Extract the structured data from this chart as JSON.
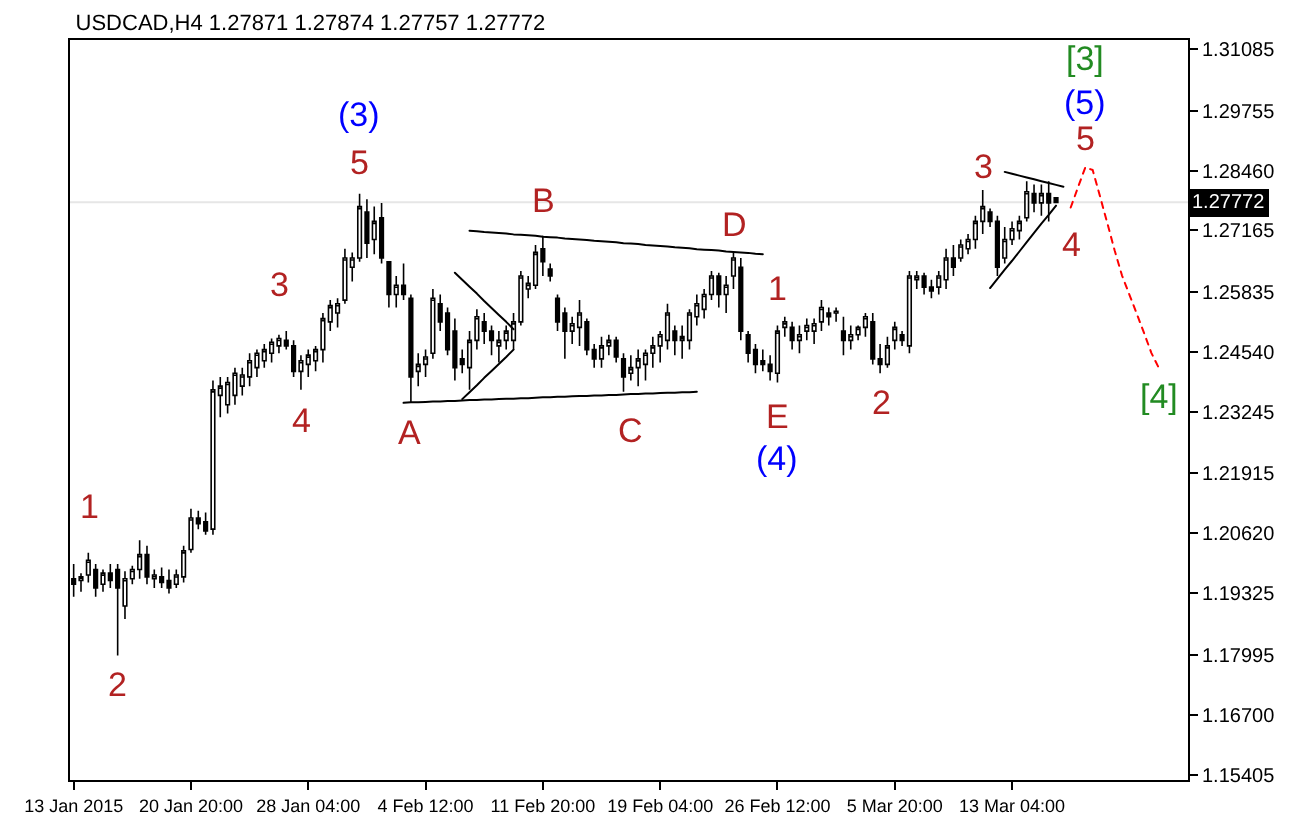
{
  "chart_data": {
    "type": "candlestick",
    "title": "USDCAD,H4 1.27871 1.27874 1.27757 1.27772",
    "color": "#000000",
    "categories": [
      "13 Jan 2015",
      null,
      null,
      null,
      null,
      null,
      null,
      null,
      null,
      null,
      null,
      null,
      null,
      null,
      null,
      null,
      "20 Jan 20:00",
      null,
      null,
      null,
      null,
      null,
      null,
      null,
      null,
      null,
      null,
      null,
      null,
      null,
      null,
      null,
      "28 Jan 04:00",
      null,
      null,
      null,
      null,
      null,
      null,
      null,
      null,
      null,
      null,
      null,
      null,
      null,
      null,
      null,
      "4 Feb 12:00",
      null,
      null,
      null,
      null,
      null,
      null,
      null,
      null,
      null,
      null,
      null,
      null,
      null,
      null,
      null,
      "11 Feb 20:00",
      null,
      null,
      null,
      null,
      null,
      null,
      null,
      null,
      null,
      null,
      null,
      null,
      null,
      null,
      null,
      "19 Feb 04:00",
      null,
      null,
      null,
      null,
      null,
      null,
      null,
      null,
      null,
      null,
      null,
      null,
      null,
      null,
      null,
      "26 Feb 12:00",
      null,
      null,
      null,
      null,
      null,
      null,
      null,
      null,
      null,
      null,
      null,
      null,
      null,
      null,
      null,
      "5 Mar 20:00",
      null,
      null,
      null,
      null,
      null,
      null,
      null,
      null,
      null,
      null,
      null,
      null,
      null,
      null,
      null,
      "13 Mar 04:00",
      null,
      null,
      null,
      null,
      null,
      null,
      null,
      null,
      null,
      null,
      null,
      null,
      null,
      null,
      null,
      null,
      null,
      null,
      null,
      null,
      null,
      null,
      null,
      null
    ],
    "ohlc": [
      [
        1.1964,
        1.1996,
        1.1925,
        1.1952
      ],
      [
        1.196,
        1.1976,
        1.1936,
        1.1968
      ],
      [
        1.1972,
        1.202,
        1.1956,
        1.2004
      ],
      [
        1.1984,
        1.1996,
        1.1925,
        1.1944
      ],
      [
        1.1952,
        1.1984,
        1.1936,
        1.1976
      ],
      [
        1.1976,
        1.1996,
        1.1944,
        1.196
      ],
      [
        1.1984,
        1.1996,
        1.1798,
        1.1944
      ],
      [
        1.1905,
        1.198,
        1.1877,
        1.1964
      ],
      [
        1.1964,
        1.1992,
        1.1952,
        1.1984
      ],
      [
        1.1984,
        1.2047,
        1.1964,
        1.2016
      ],
      [
        1.2016,
        1.2035,
        1.1952,
        1.1968
      ],
      [
        1.1964,
        1.1984,
        1.1944,
        1.1972
      ],
      [
        1.1968,
        1.1988,
        1.1944,
        1.1956
      ],
      [
        1.196,
        1.1984,
        1.1932,
        1.1944
      ],
      [
        1.1952,
        1.1984,
        1.1944,
        1.1972
      ],
      [
        1.1968,
        1.2035,
        1.1956,
        1.2024
      ],
      [
        1.2027,
        1.2115,
        1.202,
        1.2095
      ],
      [
        1.2095,
        1.2111,
        1.2071,
        1.2083
      ],
      [
        1.2087,
        1.2107,
        1.2059,
        1.2067
      ],
      [
        1.2071,
        1.2392,
        1.2059,
        1.2372
      ],
      [
        1.236,
        1.24,
        1.2313,
        1.238
      ],
      [
        1.234,
        1.24,
        1.2321,
        1.2388
      ],
      [
        1.236,
        1.242,
        1.234,
        1.2408
      ],
      [
        1.238,
        1.242,
        1.236,
        1.2404
      ],
      [
        1.24,
        1.2451,
        1.238,
        1.2435
      ],
      [
        1.242,
        1.2459,
        1.24,
        1.2451
      ],
      [
        1.2435,
        1.2471,
        1.242,
        1.2459
      ],
      [
        1.2451,
        1.2483,
        1.2431,
        1.2475
      ],
      [
        1.2467,
        1.2491,
        1.2451,
        1.2483
      ],
      [
        1.2479,
        1.2499,
        1.2459,
        1.2467
      ],
      [
        1.2467,
        1.2479,
        1.24,
        1.2412
      ],
      [
        1.2412,
        1.2447,
        1.2372,
        1.2435
      ],
      [
        1.2427,
        1.2459,
        1.24,
        1.2447
      ],
      [
        1.2435,
        1.2467,
        1.2412,
        1.2459
      ],
      [
        1.2459,
        1.2538,
        1.2431,
        1.2526
      ],
      [
        1.2519,
        1.2566,
        1.2499,
        1.2554
      ],
      [
        1.2538,
        1.257,
        1.2507,
        1.2558
      ],
      [
        1.2566,
        1.2677,
        1.2558,
        1.2657
      ],
      [
        1.2637,
        1.2669,
        1.2606,
        1.2657
      ],
      [
        1.2657,
        1.2796,
        1.2649,
        1.2768
      ],
      [
        1.2756,
        1.2784,
        1.2657,
        1.2689
      ],
      [
        1.2697,
        1.2768,
        1.2665,
        1.2736
      ],
      [
        1.2744,
        1.2776,
        1.2645,
        1.2657
      ],
      [
        1.2649,
        1.2649,
        1.255,
        1.2578
      ],
      [
        1.2578,
        1.2618,
        1.255,
        1.2598
      ],
      [
        1.2598,
        1.2645,
        1.2566,
        1.2578
      ],
      [
        1.257,
        1.2578,
        1.2344,
        1.24
      ],
      [
        1.2412,
        1.2451,
        1.238,
        1.2427
      ],
      [
        1.2427,
        1.2459,
        1.24,
        1.2443
      ],
      [
        1.2451,
        1.259,
        1.2439,
        1.257
      ],
      [
        1.2558,
        1.2578,
        1.2499,
        1.2519
      ],
      [
        1.2538,
        1.255,
        1.2447,
        1.2459
      ],
      [
        1.2499,
        1.2526,
        1.2392,
        1.242
      ],
      [
        1.2439,
        1.2459,
        1.2408,
        1.2427
      ],
      [
        1.242,
        1.2499,
        1.2372,
        1.2479
      ],
      [
        1.2479,
        1.2546,
        1.2459,
        1.253
      ],
      [
        1.2519,
        1.2538,
        1.2471,
        1.2499
      ],
      [
        1.2499,
        1.2511,
        1.2447,
        1.2479
      ],
      [
        1.2467,
        1.2499,
        1.2431,
        1.2479
      ],
      [
        1.2479,
        1.2511,
        1.2459,
        1.2499
      ],
      [
        1.2479,
        1.2538,
        1.2459,
        1.2519
      ],
      [
        1.2519,
        1.2629,
        1.2511,
        1.2618
      ],
      [
        1.259,
        1.2618,
        1.257,
        1.2602
      ],
      [
        1.2598,
        1.2685,
        1.259,
        1.2669
      ],
      [
        1.2677,
        1.2705,
        1.2618,
        1.2649
      ],
      [
        1.2633,
        1.2645,
        1.2606,
        1.2618
      ],
      [
        1.257,
        1.2578,
        1.2499,
        1.2519
      ],
      [
        1.2538,
        1.255,
        1.2439,
        1.2499
      ],
      [
        1.2499,
        1.253,
        1.2471,
        1.2515
      ],
      [
        1.2507,
        1.2566,
        1.2467,
        1.2538
      ],
      [
        1.2519,
        1.2526,
        1.2447,
        1.2459
      ],
      [
        1.2459,
        1.2471,
        1.242,
        1.2439
      ],
      [
        1.2439,
        1.2487,
        1.242,
        1.2467
      ],
      [
        1.2467,
        1.2491,
        1.2447,
        1.2479
      ],
      [
        1.2479,
        1.2487,
        1.2431,
        1.2443
      ],
      [
        1.2439,
        1.2451,
        1.2368,
        1.24
      ],
      [
        1.2408,
        1.2447,
        1.2392,
        1.242
      ],
      [
        1.242,
        1.2459,
        1.238,
        1.2439
      ],
      [
        1.2427,
        1.2459,
        1.2392,
        1.2451
      ],
      [
        1.2451,
        1.2487,
        1.242,
        1.2467
      ],
      [
        1.2467,
        1.2499,
        1.2431,
        1.2491
      ],
      [
        1.2479,
        1.2558,
        1.2459,
        1.2538
      ],
      [
        1.2499,
        1.2511,
        1.2447,
        1.2479
      ],
      [
        1.2479,
        1.2511,
        1.2439,
        1.2487
      ],
      [
        1.2479,
        1.2546,
        1.2459,
        1.2538
      ],
      [
        1.253,
        1.2578,
        1.2511,
        1.2558
      ],
      [
        1.2546,
        1.259,
        1.2526,
        1.2578
      ],
      [
        1.2578,
        1.2629,
        1.2566,
        1.2618
      ],
      [
        1.2618,
        1.2625,
        1.255,
        1.2578
      ],
      [
        1.2578,
        1.2618,
        1.2538,
        1.2598
      ],
      [
        1.2618,
        1.2669,
        1.259,
        1.2657
      ],
      [
        1.2637,
        1.2657,
        1.2479,
        1.2499
      ],
      [
        1.2491,
        1.2499,
        1.2431,
        1.2451
      ],
      [
        1.2459,
        1.2471,
        1.2408,
        1.2427
      ],
      [
        1.2435,
        1.2459,
        1.2412,
        1.2427
      ],
      [
        1.2427,
        1.2447,
        1.2392,
        1.2412
      ],
      [
        1.2408,
        1.2511,
        1.2388,
        1.2499
      ],
      [
        1.2507,
        1.253,
        1.2487,
        1.2519
      ],
      [
        1.2507,
        1.2519,
        1.2459,
        1.2479
      ],
      [
        1.2479,
        1.2511,
        1.2451,
        1.2491
      ],
      [
        1.2499,
        1.2526,
        1.2479,
        1.2511
      ],
      [
        1.2499,
        1.2526,
        1.2471,
        1.2515
      ],
      [
        1.2519,
        1.2566,
        1.2499,
        1.255
      ],
      [
        1.2538,
        1.255,
        1.2511,
        1.253
      ],
      [
        1.2538,
        1.255,
        1.2519,
        1.2542
      ],
      [
        1.2499,
        1.253,
        1.2447,
        1.2479
      ],
      [
        1.2479,
        1.2511,
        1.2459,
        1.2491
      ],
      [
        1.2491,
        1.2511,
        1.2479,
        1.2507
      ],
      [
        1.2507,
        1.2538,
        1.2487,
        1.253
      ],
      [
        1.2519,
        1.2538,
        1.2427,
        1.2439
      ],
      [
        1.2439,
        1.2471,
        1.2408,
        1.2427
      ],
      [
        1.2427,
        1.2487,
        1.242,
        1.2467
      ],
      [
        1.2479,
        1.2519,
        1.2459,
        1.2507
      ],
      [
        1.2491,
        1.2499,
        1.2467,
        1.2479
      ],
      [
        1.2467,
        1.2629,
        1.2451,
        1.2618
      ],
      [
        1.261,
        1.2629,
        1.259,
        1.2618
      ],
      [
        1.2618,
        1.2625,
        1.2578,
        1.2594
      ],
      [
        1.2594,
        1.261,
        1.257,
        1.2586
      ],
      [
        1.2594,
        1.2629,
        1.2578,
        1.2618
      ],
      [
        1.261,
        1.2677,
        1.259,
        1.2657
      ],
      [
        1.2657,
        1.2685,
        1.2618,
        1.2637
      ],
      [
        1.2657,
        1.2697,
        1.2649,
        1.2685
      ],
      [
        1.2677,
        1.2709,
        1.2665,
        1.2697
      ],
      [
        1.2697,
        1.2748,
        1.2677,
        1.2736
      ],
      [
        1.2736,
        1.2804,
        1.2709,
        1.2768
      ],
      [
        1.2756,
        1.2764,
        1.2724,
        1.2736
      ],
      [
        1.2736,
        1.2748,
        1.2618,
        1.2637
      ],
      [
        1.2657,
        1.2724,
        1.2645,
        1.2697
      ],
      [
        1.2697,
        1.2736,
        1.2685,
        1.272
      ],
      [
        1.2716,
        1.2748,
        1.2697,
        1.2736
      ],
      [
        1.2744,
        1.2823,
        1.2736,
        1.28
      ],
      [
        1.2796,
        1.2816,
        1.2756,
        1.2776
      ],
      [
        1.2776,
        1.2816,
        1.2748,
        1.2796
      ],
      [
        1.2796,
        1.2823,
        1.2736,
        1.2776
      ],
      [
        1.27871,
        1.27874,
        1.27757,
        1.27772
      ],
      null,
      null,
      null,
      null,
      null,
      null,
      null,
      null,
      null,
      null,
      null,
      null,
      null,
      null,
      null,
      null,
      null,
      null
    ],
    "series": [
      {
        "type": "line",
        "color": "#000000",
        "values": [
          null,
          null,
          null,
          null,
          null,
          null,
          null,
          null,
          null,
          null,
          null,
          null,
          null,
          null,
          null,
          null,
          null,
          null,
          null,
          null,
          null,
          null,
          null,
          null,
          null,
          null,
          null,
          null,
          null,
          null,
          null,
          null,
          null,
          null,
          null,
          null,
          null,
          null,
          null,
          null,
          null,
          null,
          null,
          null,
          null,
          1.2344,
          1.2345,
          1.2345,
          1.2346,
          1.2347,
          1.2347,
          1.2348,
          1.2348,
          1.2349,
          1.235,
          1.235,
          1.2351,
          1.2351,
          1.2352,
          1.2353,
          1.2353,
          1.2354,
          1.2354,
          1.2355,
          1.2356,
          1.2356,
          1.2357,
          1.2357,
          1.2358,
          1.2359,
          1.2359,
          1.236,
          1.236,
          1.2361,
          1.2361,
          1.2362,
          1.2363,
          1.2363,
          1.2364,
          1.2364,
          1.2365,
          1.2366,
          1.2366,
          1.2367,
          1.2367,
          1.2368,
          null,
          null,
          null,
          null,
          null,
          null,
          null,
          null,
          null,
          null,
          null,
          null,
          null,
          null,
          null,
          null,
          null,
          null,
          null,
          null,
          null,
          null,
          null,
          null,
          null,
          null,
          null,
          null,
          null,
          null,
          null,
          null,
          null,
          null,
          null,
          null,
          null,
          null,
          null,
          null,
          null,
          null,
          null,
          null,
          null,
          null,
          null,
          null,
          null,
          null,
          null,
          null,
          null,
          null,
          null,
          null,
          null,
          null,
          null,
          null,
          null,
          null,
          null,
          null,
          null,
          null,
          null
        ]
      },
      {
        "type": "line",
        "color": "#000000",
        "values": [
          null,
          null,
          null,
          null,
          null,
          null,
          null,
          null,
          null,
          null,
          null,
          null,
          null,
          null,
          null,
          null,
          null,
          null,
          null,
          null,
          null,
          null,
          null,
          null,
          null,
          null,
          null,
          null,
          null,
          null,
          null,
          null,
          null,
          null,
          null,
          null,
          null,
          null,
          null,
          null,
          null,
          null,
          null,
          null,
          null,
          null,
          null,
          null,
          null,
          null,
          null,
          null,
          null,
          null,
          1.2716,
          1.2715,
          1.2713,
          1.2712,
          1.2711,
          1.271,
          1.2708,
          1.2707,
          1.2706,
          1.2705,
          1.2703,
          1.2702,
          1.2701,
          1.2699,
          1.2698,
          1.2697,
          1.2696,
          1.2694,
          1.2693,
          1.2692,
          1.2691,
          1.2689,
          1.2688,
          1.2687,
          1.2685,
          1.2684,
          1.2683,
          1.2682,
          1.268,
          1.2679,
          1.2678,
          1.2676,
          1.2675,
          1.2674,
          1.2673,
          1.2671,
          1.267,
          1.2669,
          1.2668,
          1.2666,
          1.2665,
          null,
          null,
          null,
          null,
          null,
          null,
          null,
          null,
          null,
          null,
          null,
          null,
          null,
          null,
          null,
          null,
          null,
          null,
          null,
          null,
          null,
          null,
          null,
          null,
          null,
          null,
          null,
          null,
          null,
          null,
          null,
          null,
          null,
          null,
          null,
          null,
          null,
          null,
          null,
          null,
          null,
          null,
          null,
          null,
          null,
          null,
          null,
          null,
          null,
          null,
          null,
          null,
          null,
          null,
          null,
          null,
          null,
          null
        ]
      },
      {
        "type": "line",
        "color": "#000000",
        "values": [
          null,
          null,
          null,
          null,
          null,
          null,
          null,
          null,
          null,
          null,
          null,
          null,
          null,
          null,
          null,
          null,
          null,
          null,
          null,
          null,
          null,
          null,
          null,
          null,
          null,
          null,
          null,
          null,
          null,
          null,
          null,
          null,
          null,
          null,
          null,
          null,
          null,
          null,
          null,
          null,
          null,
          null,
          null,
          null,
          null,
          null,
          null,
          null,
          null,
          null,
          null,
          null,
          1.2625,
          1.261,
          1.2595,
          1.258,
          1.2564,
          1.2549,
          1.2534,
          1.2519,
          1.2503,
          null,
          null,
          null,
          null,
          null,
          null,
          null,
          null,
          null,
          null,
          null,
          null,
          null,
          null,
          null,
          null,
          null,
          null,
          null,
          null,
          null,
          null,
          null,
          null,
          null,
          null,
          null,
          null,
          null,
          null,
          null,
          null,
          null,
          null,
          null,
          null,
          null,
          null,
          null,
          null,
          null,
          null,
          null,
          null,
          null,
          null,
          null,
          null,
          null,
          null,
          null,
          null,
          null,
          null,
          null,
          null,
          null,
          null,
          null,
          null,
          null,
          null,
          null,
          null,
          null,
          null,
          null,
          null,
          null,
          null,
          null,
          null,
          null,
          null,
          null,
          null,
          null,
          null,
          null,
          null,
          null,
          null,
          null,
          null,
          null,
          null,
          null,
          null,
          null,
          null,
          null,
          null
        ]
      },
      {
        "type": "line",
        "color": "#000000",
        "values": [
          null,
          null,
          null,
          null,
          null,
          null,
          null,
          null,
          null,
          null,
          null,
          null,
          null,
          null,
          null,
          null,
          null,
          null,
          null,
          null,
          null,
          null,
          null,
          null,
          null,
          null,
          null,
          null,
          null,
          null,
          null,
          null,
          null,
          null,
          null,
          null,
          null,
          null,
          null,
          null,
          null,
          null,
          null,
          null,
          null,
          null,
          null,
          null,
          null,
          null,
          null,
          null,
          null,
          1.2352,
          1.2367,
          1.2382,
          1.2398,
          1.2413,
          1.2428,
          1.2443,
          1.2459,
          null,
          null,
          null,
          null,
          null,
          null,
          null,
          null,
          null,
          null,
          null,
          null,
          null,
          null,
          null,
          null,
          null,
          null,
          null,
          null,
          null,
          null,
          null,
          null,
          null,
          null,
          null,
          null,
          null,
          null,
          null,
          null,
          null,
          null,
          null,
          null,
          null,
          null,
          null,
          null,
          null,
          null,
          null,
          null,
          null,
          null,
          null,
          null,
          null,
          null,
          null,
          null,
          null,
          null,
          null,
          null,
          null,
          null,
          null,
          null,
          null,
          null,
          null,
          null,
          null,
          null,
          null,
          null,
          null,
          null,
          null,
          null,
          null,
          null,
          null,
          null,
          null,
          null,
          null,
          null,
          null,
          null,
          null,
          null,
          null,
          null,
          null,
          null,
          null,
          null,
          null,
          null
        ]
      },
      {
        "type": "line",
        "color": "#000000",
        "values": [
          null,
          null,
          null,
          null,
          null,
          null,
          null,
          null,
          null,
          null,
          null,
          null,
          null,
          null,
          null,
          null,
          null,
          null,
          null,
          null,
          null,
          null,
          null,
          null,
          null,
          null,
          null,
          null,
          null,
          null,
          null,
          null,
          null,
          null,
          null,
          null,
          null,
          null,
          null,
          null,
          null,
          null,
          null,
          null,
          null,
          null,
          null,
          null,
          null,
          null,
          null,
          null,
          null,
          null,
          null,
          null,
          null,
          null,
          null,
          null,
          null,
          null,
          null,
          null,
          null,
          null,
          null,
          null,
          null,
          null,
          null,
          null,
          null,
          null,
          null,
          null,
          null,
          null,
          null,
          null,
          null,
          null,
          null,
          null,
          null,
          null,
          null,
          null,
          null,
          null,
          null,
          null,
          null,
          null,
          null,
          null,
          null,
          null,
          null,
          null,
          null,
          null,
          null,
          null,
          null,
          null,
          null,
          null,
          null,
          null,
          null,
          null,
          null,
          null,
          null,
          null,
          null,
          null,
          null,
          null,
          null,
          null,
          null,
          null,
          null,
          null,
          null,
          1.2843,
          1.2839,
          1.2835,
          1.2831,
          1.2827,
          1.2823,
          1.2819,
          1.2815,
          1.2811,
          null,
          null,
          null,
          null,
          null,
          null,
          null,
          null,
          null,
          null,
          null,
          null,
          null,
          null,
          null,
          null,
          null
        ]
      },
      {
        "type": "line",
        "color": "#000000",
        "values": [
          null,
          null,
          null,
          null,
          null,
          null,
          null,
          null,
          null,
          null,
          null,
          null,
          null,
          null,
          null,
          null,
          null,
          null,
          null,
          null,
          null,
          null,
          null,
          null,
          null,
          null,
          null,
          null,
          null,
          null,
          null,
          null,
          null,
          null,
          null,
          null,
          null,
          null,
          null,
          null,
          null,
          null,
          null,
          null,
          null,
          null,
          null,
          null,
          null,
          null,
          null,
          null,
          null,
          null,
          null,
          null,
          null,
          null,
          null,
          null,
          null,
          null,
          null,
          null,
          null,
          null,
          null,
          null,
          null,
          null,
          null,
          null,
          null,
          null,
          null,
          null,
          null,
          null,
          null,
          null,
          null,
          null,
          null,
          null,
          null,
          null,
          null,
          null,
          null,
          null,
          null,
          null,
          null,
          null,
          null,
          null,
          null,
          null,
          null,
          null,
          null,
          null,
          null,
          null,
          null,
          null,
          null,
          null,
          null,
          null,
          null,
          null,
          null,
          null,
          null,
          null,
          null,
          null,
          null,
          null,
          null,
          null,
          null,
          null,
          null,
          1.2592,
          1.2612,
          1.2632,
          1.2651,
          1.2671,
          1.2691,
          1.2711,
          1.2731,
          1.275,
          1.277,
          null,
          null,
          null,
          null,
          null,
          null,
          null,
          null,
          null,
          null,
          null,
          null,
          null,
          null,
          null,
          null,
          null,
          null
        ]
      },
      {
        "type": "line",
        "color": "#ff0000",
        "line_style": "dashed",
        "values": [
          null,
          null,
          null,
          null,
          null,
          null,
          null,
          null,
          null,
          null,
          null,
          null,
          null,
          null,
          null,
          null,
          null,
          null,
          null,
          null,
          null,
          null,
          null,
          null,
          null,
          null,
          null,
          null,
          null,
          null,
          null,
          null,
          null,
          null,
          null,
          null,
          null,
          null,
          null,
          null,
          null,
          null,
          null,
          null,
          null,
          null,
          null,
          null,
          null,
          null,
          null,
          null,
          null,
          null,
          null,
          null,
          null,
          null,
          null,
          null,
          null,
          null,
          null,
          null,
          null,
          null,
          null,
          null,
          null,
          null,
          null,
          null,
          null,
          null,
          null,
          null,
          null,
          null,
          null,
          null,
          null,
          null,
          null,
          null,
          null,
          null,
          null,
          null,
          null,
          null,
          null,
          null,
          null,
          null,
          null,
          null,
          null,
          null,
          null,
          null,
          null,
          null,
          null,
          null,
          null,
          null,
          null,
          null,
          null,
          null,
          null,
          null,
          null,
          null,
          null,
          null,
          null,
          null,
          null,
          null,
          null,
          null,
          null,
          null,
          null,
          null,
          null,
          null,
          null,
          null,
          null,
          null,
          null,
          null,
          null,
          null,
          1.2766,
          1.281,
          1.2853,
          1.2847,
          1.279,
          1.2732,
          1.2673,
          1.2619,
          1.2578,
          1.2537,
          1.2495,
          1.2452,
          1.242,
          null,
          null,
          null,
          null
        ]
      }
    ],
    "ylim": [
      1.1529,
      1.3128
    ],
    "yticks": [
      1.31085,
      1.29755,
      {
        "value": 1.2846,
        "label": "1.28460"
      },
      1.27165,
      1.25835,
      {
        "value": 1.2454,
        "label": "1.24540"
      },
      1.23245,
      1.21915,
      {
        "value": 1.2062,
        "label": "1.20620"
      },
      1.19325,
      1.17995,
      {
        "value": 1.167,
        "label": "1.16700"
      },
      1.15405
    ],
    "ref_lines": [
      {
        "axis": "y",
        "value": 1.27772,
        "label": "1.27772",
        "color": "#e6e6e6"
      }
    ],
    "annotations": [
      "1",
      "2",
      "3",
      "4",
      "5",
      "(3)",
      "A",
      "B",
      "C",
      "D",
      "E",
      "(4)",
      "1",
      "2",
      "3",
      "4",
      "5",
      "(5)",
      "[3]",
      "[4]"
    ]
  }
}
